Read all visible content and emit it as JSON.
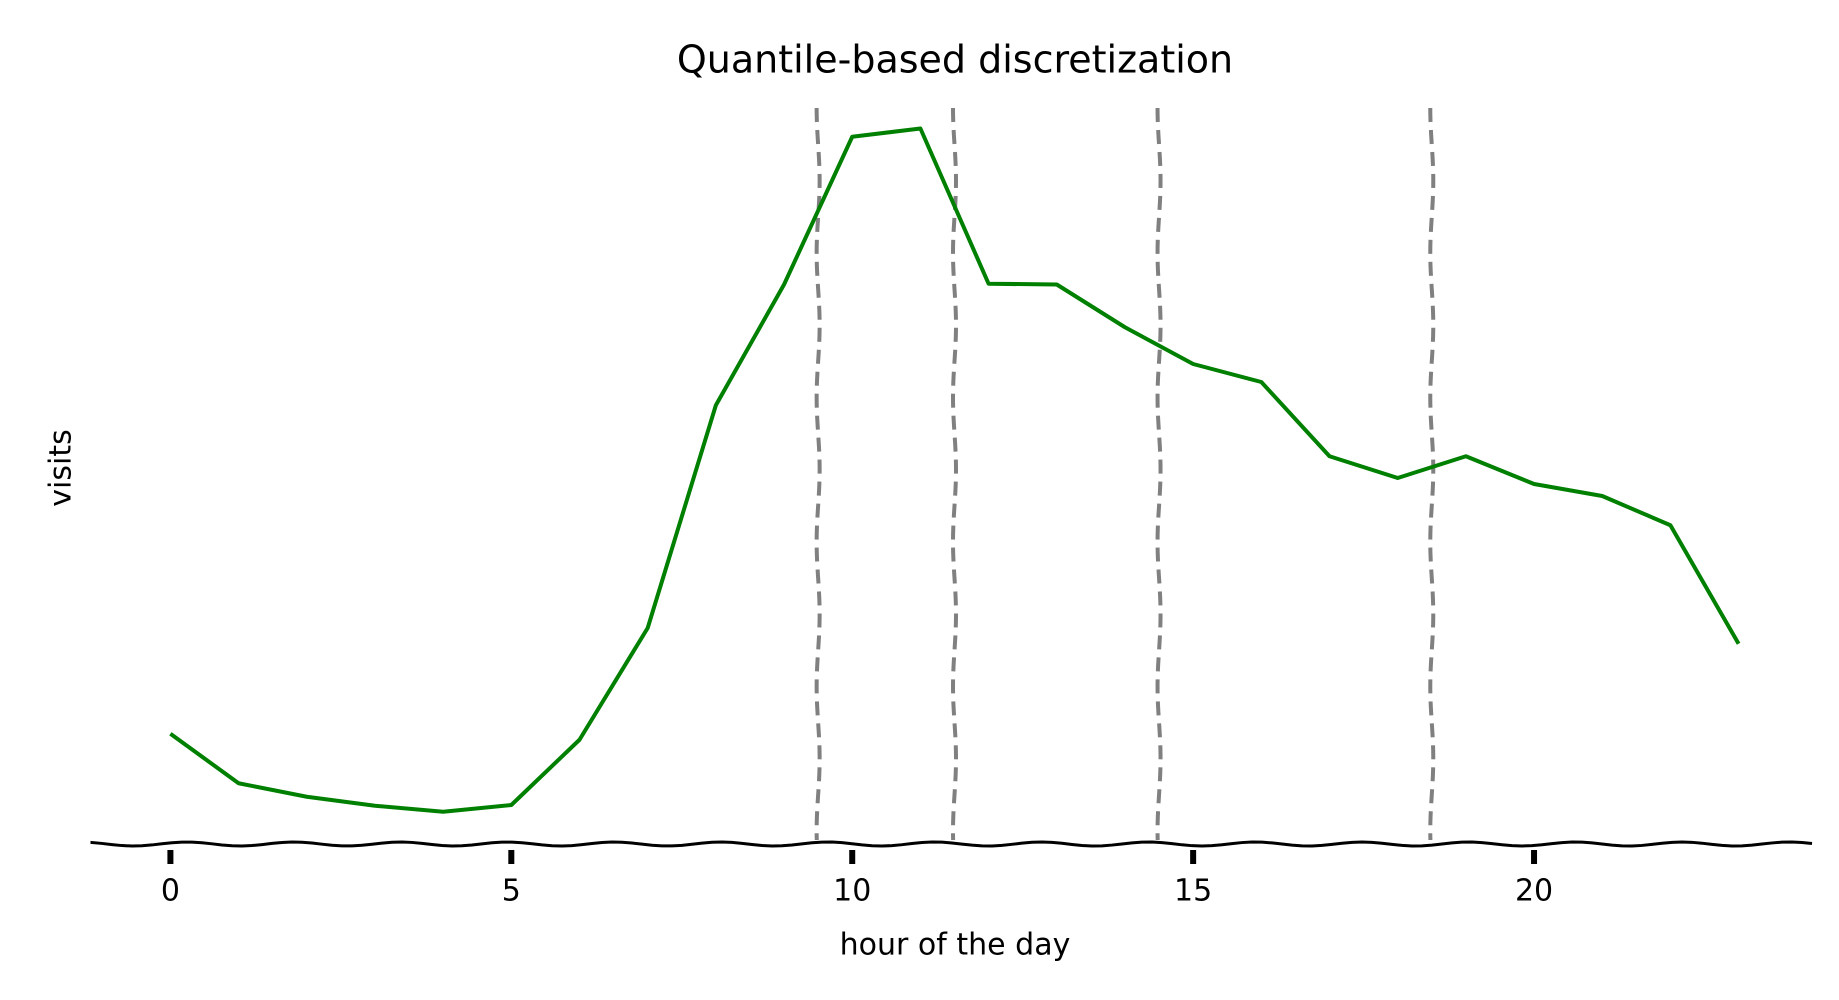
{
  "chart_data": {
    "type": "line",
    "title": "Quantile-based discretization",
    "xlabel": "hour of the day",
    "ylabel": "visits",
    "x": [
      0,
      1,
      2,
      3,
      4,
      5,
      6,
      7,
      8,
      9,
      10,
      11,
      12,
      13,
      14,
      15,
      16,
      17,
      18,
      19,
      20,
      21,
      22,
      23
    ],
    "series": [
      {
        "color": "#008000",
        "values": [
          14.7,
          8.1,
          6.3,
          5.1,
          4.3,
          5.2,
          13.9,
          28.8,
          58.5,
          74.6,
          94.3,
          95.4,
          74.7,
          74.6,
          68.9,
          64.0,
          61.6,
          51.7,
          48.8,
          51.7,
          48.0,
          46.4,
          42.5,
          26.7
        ]
      }
    ],
    "vlines": [
      9.5,
      11.5,
      14.5,
      18.5
    ],
    "vline_color": "#808080",
    "xlim": [
      -1.15,
      24.15
    ],
    "xticks": [
      0,
      5,
      10,
      15,
      20
    ],
    "ylim": [
      0,
      100
    ]
  }
}
